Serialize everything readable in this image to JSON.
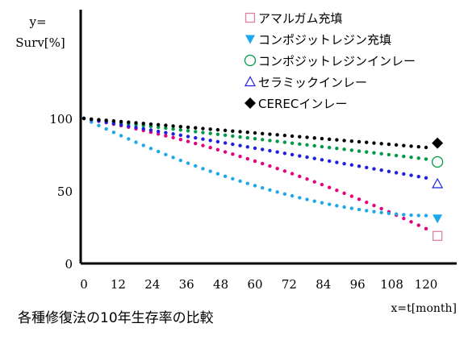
{
  "chart_data": {
    "type": "scatter",
    "title": "各種修復法の10年生存率の比較",
    "ylabel_line1": "y=",
    "ylabel_line2": "Surv[%]",
    "xlabel": "x=t[month]",
    "xlim": [
      0,
      126
    ],
    "ylim": [
      0,
      100
    ],
    "x_ticks": [
      0,
      12,
      24,
      36,
      48,
      60,
      72,
      84,
      96,
      108,
      120
    ],
    "y_ticks": [
      0,
      50,
      100
    ],
    "grid": false,
    "legend_position": "top-right",
    "series": [
      {
        "name": "アマルガム充填",
        "color": "#e6007e",
        "marker": "square-open",
        "marker_color": "#e0829a",
        "x_start": 0,
        "x_end": 120,
        "y_start": 100,
        "y_end": 24,
        "curve": "concave",
        "end_marker": {
          "x": 124,
          "y": 19
        }
      },
      {
        "name": "コンポジットレジン充填",
        "color": "#1fa8e8",
        "marker": "triangle-down-filled",
        "marker_color": "#1fa8e8",
        "x_start": 0,
        "x_end": 120,
        "y_start": 100,
        "y_end": 33,
        "curve": "convex",
        "end_marker": {
          "x": 124,
          "y": 31
        }
      },
      {
        "name": "コンポジットレジンインレー",
        "color": "#009944",
        "marker": "circle-open",
        "marker_color": "#009944",
        "x_start": 0,
        "x_end": 120,
        "y_start": 100,
        "y_end": 72,
        "curve": "linear",
        "end_marker": {
          "x": 124,
          "y": 70
        }
      },
      {
        "name": "セラミックインレー",
        "color": "#1f1fe0",
        "marker": "triangle-up-open",
        "marker_color": "#1f1fe0",
        "x_start": 0,
        "x_end": 120,
        "y_start": 100,
        "y_end": 59,
        "curve": "linear",
        "end_marker": {
          "x": 124,
          "y": 55
        }
      },
      {
        "name": "CERECインレー",
        "color": "#000000",
        "marker": "diamond-filled",
        "marker_color": "#000000",
        "x_start": 0,
        "x_end": 120,
        "y_start": 100,
        "y_end": 80,
        "curve": "linear",
        "end_marker": {
          "x": 124,
          "y": 83
        }
      }
    ]
  }
}
